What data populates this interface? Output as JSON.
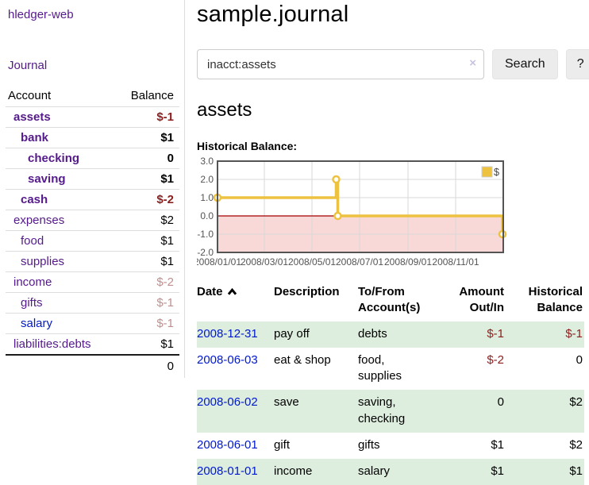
{
  "colors": {
    "link_visited": "#551a8b",
    "link_new": "#0018cc",
    "negative_strong": "#8b1f1f",
    "negative_dim": "#bf8f8f",
    "stripe_green": "#deeede",
    "button_bg": "#ececec"
  },
  "app": {
    "brand": "hledger-web",
    "nav_journal": "Journal"
  },
  "sidebar": {
    "header": {
      "account": "Account",
      "balance": "Balance"
    },
    "accounts": [
      {
        "name": "assets",
        "balance": "$-1",
        "level": 1,
        "bold": true,
        "visited": true,
        "balance_color": "negative"
      },
      {
        "name": "bank",
        "balance": "$1",
        "level": 2,
        "bold": true,
        "visited": true,
        "balance_color": "default"
      },
      {
        "name": "checking",
        "balance": "0",
        "level": 3,
        "bold": true,
        "visited": true,
        "balance_color": "default"
      },
      {
        "name": "saving",
        "balance": "$1",
        "level": 3,
        "bold": true,
        "visited": true,
        "balance_color": "default"
      },
      {
        "name": "cash",
        "balance": "$-2",
        "level": 2,
        "bold": true,
        "visited": true,
        "balance_color": "negative"
      },
      {
        "name": "expenses",
        "balance": "$2",
        "level": 1,
        "bold": false,
        "visited": true,
        "balance_color": "default"
      },
      {
        "name": "food",
        "balance": "$1",
        "level": 2,
        "bold": false,
        "visited": true,
        "balance_color": "default"
      },
      {
        "name": "supplies",
        "balance": "$1",
        "level": 2,
        "bold": false,
        "visited": true,
        "balance_color": "default"
      },
      {
        "name": "income",
        "balance": "$-2",
        "level": 1,
        "bold": false,
        "visited": true,
        "balance_color": "negative-dim"
      },
      {
        "name": "gifts",
        "balance": "$-1",
        "level": 2,
        "bold": false,
        "visited": true,
        "balance_color": "negative-dim"
      },
      {
        "name": "salary",
        "balance": "$-1",
        "level": 2,
        "bold": false,
        "visited": false,
        "balance_color": "negative-dim"
      },
      {
        "name": "liabilities:debts",
        "balance": "$1",
        "level": 1,
        "bold": false,
        "visited": true,
        "balance_color": "default"
      }
    ],
    "total": "0"
  },
  "main": {
    "title": "sample.journal",
    "search": {
      "value": "inacct:assets",
      "clear_label": "×",
      "button_label": "Search",
      "help_label": "?"
    },
    "account_heading": "assets",
    "chart_label": "Historical Balance:"
  },
  "chart_data": {
    "type": "line",
    "title": "Historical Balance",
    "step": true,
    "series": [
      {
        "name": "$",
        "color": "#edc240",
        "points": [
          {
            "date": "2008-01-01",
            "value": 1
          },
          {
            "date": "2008-06-01",
            "value": 2
          },
          {
            "date": "2008-06-03",
            "value": 0
          },
          {
            "date": "2008-12-31",
            "value": -1
          }
        ]
      }
    ],
    "x_range": [
      "2008-01-01",
      "2009-01-01"
    ],
    "x_ticks": [
      "2008/01/01",
      "2008/03/01",
      "2008/05/01",
      "2008/07/01",
      "2008/09/01",
      "2008/11/01"
    ],
    "y_ticks": [
      3.0,
      2.0,
      1.0,
      0.0,
      -1.0,
      -2.0
    ],
    "ylim": [
      -2,
      3
    ],
    "grid": true,
    "legend": {
      "label": "$",
      "position": "top-right"
    },
    "negative_region_color": "#f9d8d8",
    "zero_line_color": "#a40000",
    "grid_color": "#d8d8d8",
    "border_color": "#545454",
    "tick_label_color": "#545454"
  },
  "register": {
    "columns": [
      "Date",
      "Description",
      "To/From Account(s)",
      "Amount Out/In",
      "Historical Balance"
    ],
    "rows": [
      {
        "date": "2008-12-31",
        "description": "pay off",
        "accounts": "debts",
        "amount": "$-1",
        "balance": "$-1"
      },
      {
        "date": "2008-06-03",
        "description": "eat & shop",
        "accounts": "food, supplies",
        "amount": "$-2",
        "balance": "0"
      },
      {
        "date": "2008-06-02",
        "description": "save",
        "accounts": "saving, checking",
        "amount": "0",
        "balance": "$2"
      },
      {
        "date": "2008-06-01",
        "description": "gift",
        "accounts": "gifts",
        "amount": "$1",
        "balance": "$2"
      },
      {
        "date": "2008-01-01",
        "description": "income",
        "accounts": "salary",
        "amount": "$1",
        "balance": "$1"
      }
    ]
  }
}
